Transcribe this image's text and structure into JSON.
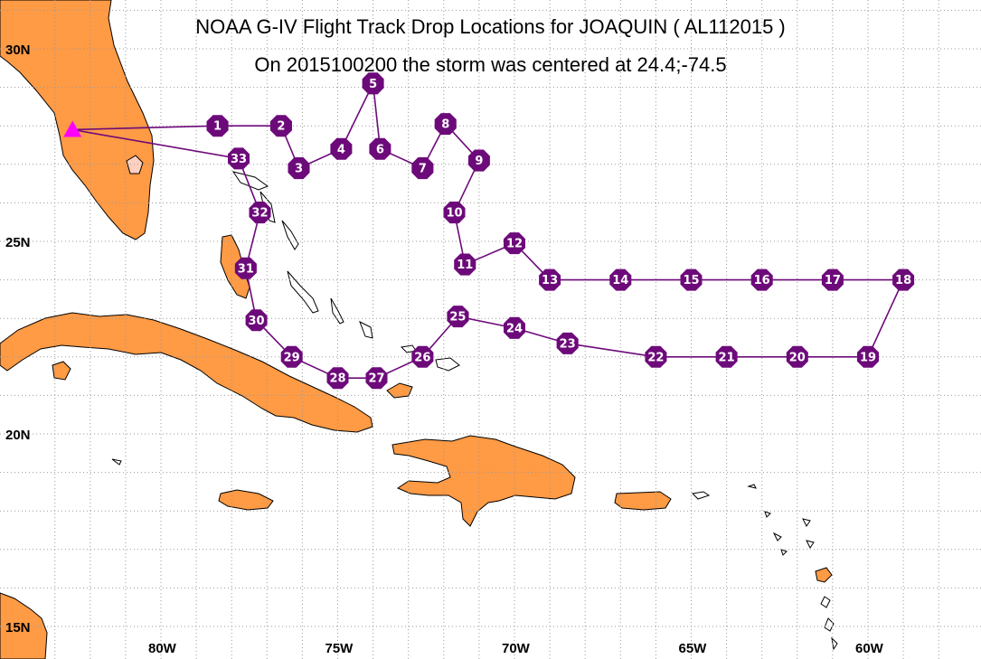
{
  "title": "NOAA G-IV Flight Track Drop Locations for JOAQUIN ( AL112015 )",
  "subtitle": "On 2015100200 the storm was centered at 24.4;-74.5",
  "map_extent": {
    "lon_min": -83.3,
    "lon_max": -58.6,
    "lat_min": 14.6,
    "lat_max": 30.1
  },
  "lat_ticks": [
    {
      "lat": 30,
      "label": "30N"
    },
    {
      "lat": 25,
      "label": "25N"
    },
    {
      "lat": 20,
      "label": "20N"
    },
    {
      "lat": 15,
      "label": "15N"
    }
  ],
  "lon_ticks": [
    {
      "lon": -80,
      "label": "80W"
    },
    {
      "lon": -75,
      "label": "75W"
    },
    {
      "lon": -70,
      "label": "70W"
    },
    {
      "lon": -65,
      "label": "65W"
    },
    {
      "lon": -60,
      "label": "60W"
    }
  ],
  "colors": {
    "land": "#ff9a45",
    "track": "#6d0a7a",
    "origin": "#ff00ff"
  },
  "origin": {
    "lon": -82.5,
    "lat": 27.9,
    "symbol": "triangle"
  },
  "chart_data": {
    "type": "scatter",
    "title": "NOAA G-IV Flight Track Drop Locations for JOAQUIN ( AL112015 )",
    "subtitle": "On 2015100200 the storm was centered at 24.4;-74.5",
    "xlim": [
      -83.3,
      -58.6
    ],
    "ylim": [
      14.6,
      30.1
    ],
    "points": [
      {
        "id": "1",
        "lon": -78.4,
        "lat": 28.0
      },
      {
        "id": "2",
        "lon": -76.6,
        "lat": 28.0
      },
      {
        "id": "3",
        "lon": -76.1,
        "lat": 26.9
      },
      {
        "id": "4",
        "lon": -74.9,
        "lat": 27.4
      },
      {
        "id": "5",
        "lon": -74.0,
        "lat": 29.1
      },
      {
        "id": "6",
        "lon": -73.8,
        "lat": 27.4
      },
      {
        "id": "7",
        "lon": -72.6,
        "lat": 26.9
      },
      {
        "id": "8",
        "lon": -71.95,
        "lat": 28.05
      },
      {
        "id": "9",
        "lon": -71.0,
        "lat": 27.1
      },
      {
        "id": "10",
        "lon": -71.7,
        "lat": 25.75
      },
      {
        "id": "11",
        "lon": -71.4,
        "lat": 24.4
      },
      {
        "id": "12",
        "lon": -70.0,
        "lat": 24.95
      },
      {
        "id": "13",
        "lon": -69.0,
        "lat": 24.0
      },
      {
        "id": "14",
        "lon": -67.0,
        "lat": 24.0
      },
      {
        "id": "15",
        "lon": -65.0,
        "lat": 24.0
      },
      {
        "id": "16",
        "lon": -63.0,
        "lat": 24.0
      },
      {
        "id": "17",
        "lon": -61.0,
        "lat": 24.0
      },
      {
        "id": "18",
        "lon": -59.0,
        "lat": 24.0
      },
      {
        "id": "19",
        "lon": -60.0,
        "lat": 22.0
      },
      {
        "id": "20",
        "lon": -62.0,
        "lat": 22.0
      },
      {
        "id": "21",
        "lon": -64.0,
        "lat": 22.0
      },
      {
        "id": "22",
        "lon": -66.0,
        "lat": 22.0
      },
      {
        "id": "23",
        "lon": -68.5,
        "lat": 22.35
      },
      {
        "id": "24",
        "lon": -70.0,
        "lat": 22.75
      },
      {
        "id": "25",
        "lon": -71.6,
        "lat": 23.05
      },
      {
        "id": "26",
        "lon": -72.6,
        "lat": 22.0
      },
      {
        "id": "27",
        "lon": -73.9,
        "lat": 21.45
      },
      {
        "id": "28",
        "lon": -75.0,
        "lat": 21.45
      },
      {
        "id": "29",
        "lon": -76.3,
        "lat": 22.0
      },
      {
        "id": "30",
        "lon": -77.3,
        "lat": 22.95
      },
      {
        "id": "31",
        "lon": -77.6,
        "lat": 24.3
      },
      {
        "id": "32",
        "lon": -77.2,
        "lat": 25.75
      },
      {
        "id": "33",
        "lon": -77.8,
        "lat": 27.15
      }
    ]
  }
}
